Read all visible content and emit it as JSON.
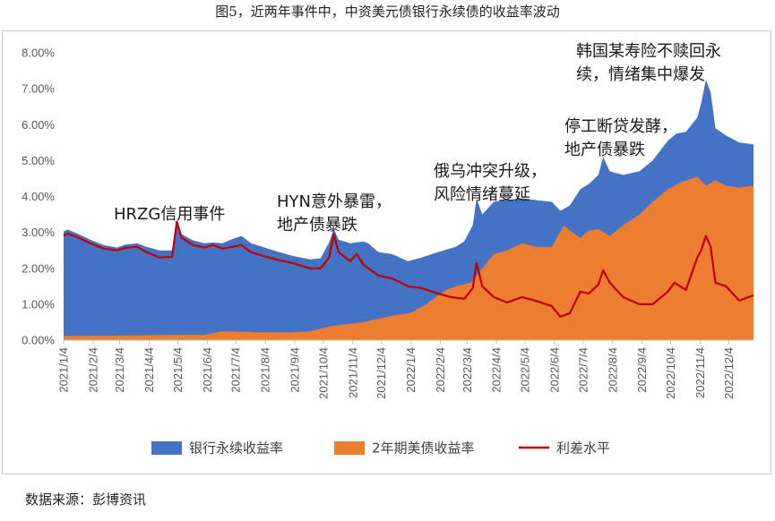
{
  "title": "图5，近两年事件中，中资美元债银行永续债的收益率波动",
  "source": "数据来源：彭博资讯",
  "chart_data": {
    "type": "area",
    "ylim": [
      0,
      8
    ],
    "y_ticks": [
      "0.00%",
      "1.00%",
      "2.00%",
      "3.00%",
      "4.00%",
      "5.00%",
      "6.00%",
      "7.00%",
      "8.00%"
    ],
    "x_range": [
      "2021/1/4",
      "2022/12/30"
    ],
    "x_ticks": [
      "2021/1/4",
      "2021/2/4",
      "2021/3/4",
      "2021/4/4",
      "2021/5/4",
      "2021/6/4",
      "2021/7/4",
      "2021/8/4",
      "2021/9/4",
      "2021/10/4",
      "2021/11/4",
      "2021/12/4",
      "2022/1/4",
      "2022/2/4",
      "2022/3/4",
      "2022/4/4",
      "2022/5/4",
      "2022/6/4",
      "2022/7/4",
      "2022/8/4",
      "2022/9/4",
      "2022/10/4",
      "2022/11/4",
      "2022/12/4"
    ],
    "grid": false,
    "legend_position": "bottom",
    "series": [
      {
        "name": "银行永续收益率",
        "kind": "area",
        "color": "#4472C4",
        "points": [
          [
            "2021/1/4",
            3.02
          ],
          [
            "2021/1/8",
            3.08
          ],
          [
            "2021/1/20",
            2.95
          ],
          [
            "2021/2/1",
            2.8
          ],
          [
            "2021/2/15",
            2.65
          ],
          [
            "2021/3/1",
            2.58
          ],
          [
            "2021/3/10",
            2.66
          ],
          [
            "2021/3/22",
            2.7
          ],
          [
            "2021/4/1",
            2.6
          ],
          [
            "2021/4/15",
            2.5
          ],
          [
            "2021/4/28",
            2.5
          ],
          [
            "2021/5/3",
            3.3
          ],
          [
            "2021/5/8",
            2.95
          ],
          [
            "2021/5/20",
            2.78
          ],
          [
            "2021/6/1",
            2.7
          ],
          [
            "2021/6/10",
            2.72
          ],
          [
            "2021/6/20",
            2.7
          ],
          [
            "2021/7/1",
            2.82
          ],
          [
            "2021/7/10",
            2.9
          ],
          [
            "2021/7/20",
            2.7
          ],
          [
            "2021/8/1",
            2.6
          ],
          [
            "2021/8/15",
            2.48
          ],
          [
            "2021/9/1",
            2.35
          ],
          [
            "2021/9/20",
            2.25
          ],
          [
            "2021/10/1",
            2.28
          ],
          [
            "2021/10/10",
            2.72
          ],
          [
            "2021/10/15",
            3.1
          ],
          [
            "2021/10/20",
            2.8
          ],
          [
            "2021/11/1",
            2.7
          ],
          [
            "2021/11/15",
            2.75
          ],
          [
            "2021/11/20",
            2.7
          ],
          [
            "2021/12/1",
            2.45
          ],
          [
            "2021/12/15",
            2.4
          ],
          [
            "2022/1/1",
            2.2
          ],
          [
            "2022/1/15",
            2.3
          ],
          [
            "2022/2/1",
            2.45
          ],
          [
            "2022/2/20",
            2.6
          ],
          [
            "2022/3/1",
            2.75
          ],
          [
            "2022/3/10",
            3.2
          ],
          [
            "2022/3/14",
            3.95
          ],
          [
            "2022/3/20",
            3.5
          ],
          [
            "2022/4/1",
            3.85
          ],
          [
            "2022/4/15",
            3.9
          ],
          [
            "2022/5/1",
            3.95
          ],
          [
            "2022/5/15",
            3.9
          ],
          [
            "2022/6/1",
            3.85
          ],
          [
            "2022/6/10",
            3.6
          ],
          [
            "2022/6/20",
            3.75
          ],
          [
            "2022/7/1",
            4.2
          ],
          [
            "2022/7/10",
            4.35
          ],
          [
            "2022/7/20",
            4.6
          ],
          [
            "2022/7/25",
            5.1
          ],
          [
            "2022/8/1",
            4.7
          ],
          [
            "2022/8/15",
            4.6
          ],
          [
            "2022/9/1",
            4.7
          ],
          [
            "2022/9/15",
            5.0
          ],
          [
            "2022/10/1",
            5.55
          ],
          [
            "2022/10/10",
            5.75
          ],
          [
            "2022/10/20",
            5.8
          ],
          [
            "2022/11/1",
            6.2
          ],
          [
            "2022/11/5",
            6.6
          ],
          [
            "2022/11/10",
            7.25
          ],
          [
            "2022/11/15",
            6.9
          ],
          [
            "2022/11/20",
            5.9
          ],
          [
            "2022/12/1",
            5.7
          ],
          [
            "2022/12/15",
            5.5
          ],
          [
            "2022/12/30",
            5.45
          ]
        ]
      },
      {
        "name": "2年期美债收益率",
        "kind": "area",
        "color": "#ED7D31",
        "points": [
          [
            "2021/1/4",
            0.12
          ],
          [
            "2021/3/1",
            0.13
          ],
          [
            "2021/5/1",
            0.15
          ],
          [
            "2021/6/1",
            0.15
          ],
          [
            "2021/6/20",
            0.25
          ],
          [
            "2021/8/1",
            0.22
          ],
          [
            "2021/9/1",
            0.22
          ],
          [
            "2021/9/20",
            0.25
          ],
          [
            "2021/10/15",
            0.4
          ],
          [
            "2021/11/15",
            0.5
          ],
          [
            "2021/12/15",
            0.68
          ],
          [
            "2022/1/4",
            0.76
          ],
          [
            "2022/1/20",
            1.0
          ],
          [
            "2022/2/10",
            1.4
          ],
          [
            "2022/2/20",
            1.5
          ],
          [
            "2022/3/8",
            1.6
          ],
          [
            "2022/3/20",
            2.0
          ],
          [
            "2022/4/1",
            2.4
          ],
          [
            "2022/4/15",
            2.5
          ],
          [
            "2022/5/1",
            2.7
          ],
          [
            "2022/5/15",
            2.6
          ],
          [
            "2022/6/1",
            2.6
          ],
          [
            "2022/6/14",
            3.2
          ],
          [
            "2022/6/20",
            3.05
          ],
          [
            "2022/7/1",
            2.85
          ],
          [
            "2022/7/10",
            3.05
          ],
          [
            "2022/7/20",
            3.1
          ],
          [
            "2022/8/1",
            2.9
          ],
          [
            "2022/8/15",
            3.2
          ],
          [
            "2022/9/1",
            3.5
          ],
          [
            "2022/9/15",
            3.85
          ],
          [
            "2022/10/1",
            4.2
          ],
          [
            "2022/10/15",
            4.4
          ],
          [
            "2022/11/1",
            4.55
          ],
          [
            "2022/11/10",
            4.3
          ],
          [
            "2022/11/20",
            4.45
          ],
          [
            "2022/12/1",
            4.3
          ],
          [
            "2022/12/15",
            4.25
          ],
          [
            "2022/12/30",
            4.3
          ]
        ]
      },
      {
        "name": "利差水平",
        "kind": "line",
        "color": "#C00000",
        "points": [
          [
            "2021/1/4",
            2.9
          ],
          [
            "2021/1/8",
            2.97
          ],
          [
            "2021/1/20",
            2.85
          ],
          [
            "2021/2/1",
            2.7
          ],
          [
            "2021/2/15",
            2.55
          ],
          [
            "2021/3/1",
            2.5
          ],
          [
            "2021/3/10",
            2.57
          ],
          [
            "2021/3/22",
            2.6
          ],
          [
            "2021/4/1",
            2.45
          ],
          [
            "2021/4/15",
            2.3
          ],
          [
            "2021/4/28",
            2.32
          ],
          [
            "2021/5/3",
            3.3
          ],
          [
            "2021/5/8",
            2.85
          ],
          [
            "2021/5/20",
            2.65
          ],
          [
            "2021/6/1",
            2.58
          ],
          [
            "2021/6/10",
            2.65
          ],
          [
            "2021/6/20",
            2.55
          ],
          [
            "2021/7/1",
            2.6
          ],
          [
            "2021/7/10",
            2.65
          ],
          [
            "2021/7/20",
            2.45
          ],
          [
            "2021/8/1",
            2.35
          ],
          [
            "2021/8/15",
            2.25
          ],
          [
            "2021/9/1",
            2.15
          ],
          [
            "2021/9/20",
            2.0
          ],
          [
            "2021/10/1",
            2.0
          ],
          [
            "2021/10/10",
            2.3
          ],
          [
            "2021/10/15",
            2.95
          ],
          [
            "2021/10/20",
            2.45
          ],
          [
            "2021/11/1",
            2.2
          ],
          [
            "2021/11/8",
            2.4
          ],
          [
            "2021/11/15",
            2.1
          ],
          [
            "2021/12/1",
            1.8
          ],
          [
            "2021/12/15",
            1.72
          ],
          [
            "2022/1/1",
            1.5
          ],
          [
            "2022/1/15",
            1.45
          ],
          [
            "2022/2/1",
            1.3
          ],
          [
            "2022/2/15",
            1.2
          ],
          [
            "2022/3/1",
            1.15
          ],
          [
            "2022/3/10",
            1.45
          ],
          [
            "2022/3/14",
            2.15
          ],
          [
            "2022/3/20",
            1.5
          ],
          [
            "2022/4/1",
            1.2
          ],
          [
            "2022/4/15",
            1.05
          ],
          [
            "2022/5/1",
            1.2
          ],
          [
            "2022/5/15",
            1.1
          ],
          [
            "2022/6/1",
            0.95
          ],
          [
            "2022/6/10",
            0.65
          ],
          [
            "2022/6/20",
            0.75
          ],
          [
            "2022/7/1",
            1.35
          ],
          [
            "2022/7/10",
            1.3
          ],
          [
            "2022/7/20",
            1.55
          ],
          [
            "2022/7/25",
            1.95
          ],
          [
            "2022/8/1",
            1.6
          ],
          [
            "2022/8/15",
            1.2
          ],
          [
            "2022/9/1",
            1.0
          ],
          [
            "2022/9/15",
            1.0
          ],
          [
            "2022/10/1",
            1.35
          ],
          [
            "2022/10/8",
            1.6
          ],
          [
            "2022/10/20",
            1.4
          ],
          [
            "2022/11/1",
            2.3
          ],
          [
            "2022/11/5",
            2.5
          ],
          [
            "2022/11/10",
            2.9
          ],
          [
            "2022/11/15",
            2.6
          ],
          [
            "2022/11/20",
            1.6
          ],
          [
            "2022/12/1",
            1.5
          ],
          [
            "2022/12/15",
            1.1
          ],
          [
            "2022/12/30",
            1.25
          ]
        ]
      }
    ],
    "annotations": [
      {
        "lines": [
          "HRZG信用事件"
        ]
      },
      {
        "lines": [
          "HYN意外暴雷，",
          "地产债暴跌"
        ]
      },
      {
        "lines": [
          "俄乌冲突升级，",
          "风险情绪蔓延"
        ]
      },
      {
        "lines": [
          "停工断贷发酵，",
          "地产债暴跌"
        ]
      },
      {
        "lines": [
          "韩国某寿险不赎回永",
          "续，情绪集中爆发"
        ]
      }
    ]
  }
}
